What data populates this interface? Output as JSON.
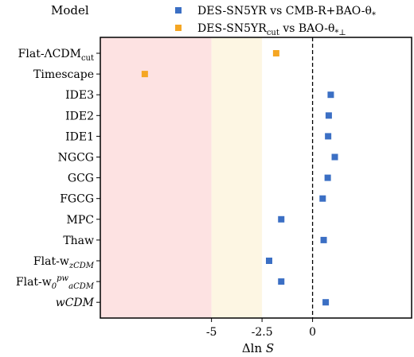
{
  "chart_data": {
    "type": "scatter",
    "title": "",
    "xlabel": "Δln S",
    "ylabel": "",
    "legend_title": "Model",
    "legend_placement": "top",
    "xlim": [
      -10.5,
      4.9
    ],
    "xticks": [
      {
        "value": -5,
        "label": "-5"
      },
      {
        "value": -2.5,
        "label": "-2.5"
      },
      {
        "value": 0,
        "label": "0"
      }
    ],
    "reference_line_x": 0,
    "shaded_bands": [
      {
        "x0": -10.5,
        "x1": -5,
        "color": "#fde2e2"
      },
      {
        "x0": -5,
        "x1": -2.5,
        "color": "#fdf6e3"
      }
    ],
    "categories": [
      "Flat-ΛCDM_cut",
      "Timescape",
      "IDE3",
      "IDE2",
      "IDE1",
      "NGCG",
      "GCG",
      "FGCG",
      "MPC",
      "Thaw",
      "Flat-w_zCDM",
      "Flat-w_0^pw_aCDM",
      "wCDM"
    ],
    "series": [
      {
        "name": "DES-SN5YR vs CMB-R+BAO-θ_*",
        "color": "#3b6fc4",
        "points": [
          {
            "category": "IDE3",
            "x": 0.9,
            "err": 0.06
          },
          {
            "category": "IDE2",
            "x": 0.8,
            "err": 0.06
          },
          {
            "category": "IDE1",
            "x": 0.77,
            "err": 0.06
          },
          {
            "category": "NGCG",
            "x": 1.1,
            "err": 0.06
          },
          {
            "category": "GCG",
            "x": 0.75,
            "err": 0.06
          },
          {
            "category": "FGCG",
            "x": 0.5,
            "err": 0.06
          },
          {
            "category": "MPC",
            "x": -1.55,
            "err": 0.15
          },
          {
            "category": "Thaw",
            "x": 0.55,
            "err": 0.06
          },
          {
            "category": "Flat-w_zCDM",
            "x": -2.15,
            "err": 0.1
          },
          {
            "category": "Flat-w_0^pw_aCDM",
            "x": -1.55,
            "err": 0.12
          },
          {
            "category": "wCDM",
            "x": 0.65,
            "err": 0.15
          }
        ]
      },
      {
        "name": "DES-SN5YR_cut vs BAO-θ_*⊥",
        "color": "#f5a623",
        "points": [
          {
            "category": "Flat-ΛCDM_cut",
            "x": -1.8,
            "err": 0.06
          },
          {
            "category": "Timescape",
            "x": -8.3,
            "err": 0.06
          }
        ]
      }
    ]
  }
}
